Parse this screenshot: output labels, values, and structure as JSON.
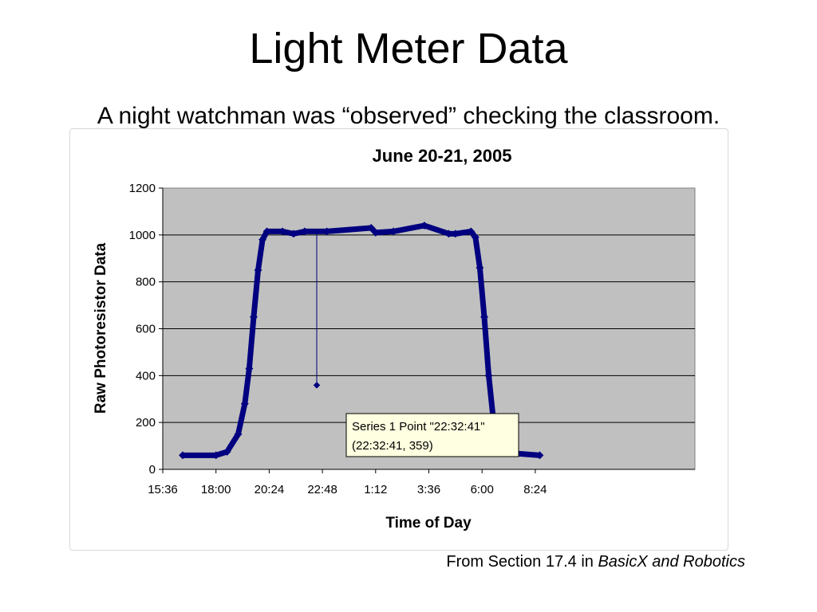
{
  "slide": {
    "title": "Light Meter Data",
    "subtitle": "A night watchman was “observed” checking the classroom.",
    "source_prefix": "From Section 17.4 in ",
    "source_book": "BasicX and Robotics"
  },
  "chart_data": {
    "type": "scatter",
    "title": "June 20-21, 2005",
    "xlabel": "Time of Day",
    "ylabel": "Raw Photoresistor Data",
    "x_ticks": [
      "15:36",
      "18:00",
      "20:24",
      "22:48",
      "1:12",
      "3:36",
      "6:00",
      "8:24"
    ],
    "xlim_minutes_from_15_36": [
      0,
      1440
    ],
    "ylim": [
      0,
      1200
    ],
    "y_ticks": [
      0,
      200,
      400,
      600,
      800,
      1000,
      1200
    ],
    "grid": "horizontal",
    "plot_background": "#c0c0c0",
    "series_color": "#000080",
    "series": [
      {
        "points": [
          {
            "x": "16:30",
            "y": 60
          },
          {
            "x": "18:00",
            "y": 60
          },
          {
            "x": "18:30",
            "y": 75
          },
          {
            "x": "19:00",
            "y": 150
          },
          {
            "x": "19:18",
            "y": 280
          },
          {
            "x": "19:30",
            "y": 430
          },
          {
            "x": "19:42",
            "y": 650
          },
          {
            "x": "19:54",
            "y": 850
          },
          {
            "x": "20:06",
            "y": 980
          },
          {
            "x": "20:18",
            "y": 1015
          },
          {
            "x": "21:00",
            "y": 1015
          },
          {
            "x": "21:30",
            "y": 1005
          },
          {
            "x": "22:00",
            "y": 1015
          },
          {
            "x": "22:32:41",
            "y": 359
          },
          {
            "x": "23:00",
            "y": 1015
          },
          {
            "x": "1:00",
            "y": 1030
          },
          {
            "x": "1:12",
            "y": 1010
          },
          {
            "x": "2:00",
            "y": 1015
          },
          {
            "x": "3:24",
            "y": 1040
          },
          {
            "x": "4:30",
            "y": 1005
          },
          {
            "x": "4:48",
            "y": 1005
          },
          {
            "x": "5:30",
            "y": 1015
          },
          {
            "x": "5:42",
            "y": 990
          },
          {
            "x": "5:54",
            "y": 860
          },
          {
            "x": "6:06",
            "y": 650
          },
          {
            "x": "6:18",
            "y": 400
          },
          {
            "x": "6:30",
            "y": 220
          },
          {
            "x": "6:48",
            "y": 120
          },
          {
            "x": "7:12",
            "y": 70
          },
          {
            "x": "8:36",
            "y": 60
          }
        ]
      }
    ],
    "tooltip": {
      "line1": "Series 1 Point \"22:32:41\"",
      "line2": "(22:32:41, 359)"
    }
  }
}
